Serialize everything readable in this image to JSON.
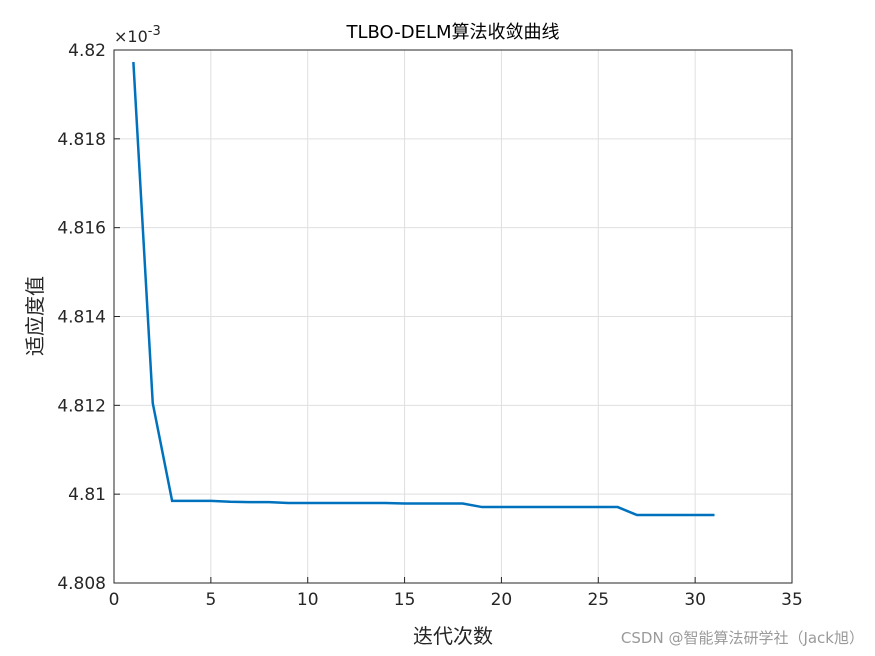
{
  "chart_data": {
    "type": "line",
    "title": "TLBO-DELM算法收敛曲线",
    "x_label": "迭代次数",
    "y_label": "适应度值",
    "y_multiplier": {
      "base": "×10",
      "exponent": "-3"
    },
    "watermark": "CSDN @智能算法研学社（Jack旭）",
    "x": [
      1,
      2,
      3,
      4,
      5,
      6,
      7,
      8,
      9,
      10,
      11,
      12,
      13,
      14,
      15,
      16,
      17,
      18,
      19,
      20,
      21,
      22,
      23,
      24,
      25,
      26,
      27,
      28,
      29,
      30,
      31
    ],
    "series": [
      {
        "color": "#0072bd",
        "values": [
          4.81973,
          4.81205,
          4.80985,
          4.80985,
          4.80985,
          4.80983,
          4.80982,
          4.80982,
          4.8098,
          4.8098,
          4.8098,
          4.8098,
          4.8098,
          4.8098,
          4.80979,
          4.80979,
          4.80979,
          4.80979,
          4.80971,
          4.80971,
          4.80971,
          4.80971,
          4.80971,
          4.80971,
          4.80971,
          4.80971,
          4.80953,
          4.80953,
          4.80953,
          4.80953,
          4.80953
        ]
      }
    ],
    "xlim": [
      0,
      35
    ],
    "xticks": [
      0,
      5,
      10,
      15,
      20,
      25,
      30,
      35
    ],
    "ylim": [
      4.808,
      4.82
    ],
    "yticks": [
      4.808,
      4.81,
      4.812,
      4.814,
      4.816,
      4.818,
      4.82
    ],
    "grid": true
  }
}
